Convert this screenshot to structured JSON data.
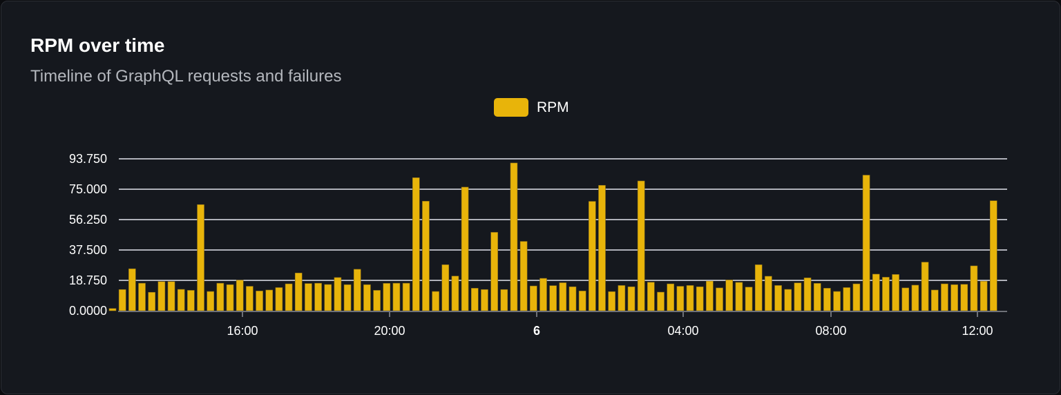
{
  "card": {
    "title": "RPM over time",
    "subtitle": "Timeline of GraphQL requests and failures"
  },
  "colors": {
    "bar": "#e8b40a",
    "bar_border": "#8a6e1a",
    "grid": "#e3e6ee",
    "axis": "#6e7178",
    "background": "#15181e"
  },
  "chart_data": {
    "type": "bar",
    "title": "RPM over time",
    "subtitle": "Timeline of GraphQL requests and failures",
    "legend": {
      "entries": [
        "RPM"
      ],
      "placement": "top"
    },
    "grid": true,
    "ylim": [
      0,
      93.75
    ],
    "y_ticks": [
      "0.0000",
      "18.750",
      "37.500",
      "56.250",
      "75.000",
      "93.750"
    ],
    "x_ticks": [
      "16:00",
      "20:00",
      "6",
      "04:00",
      "08:00",
      "12:00"
    ],
    "x_tick_bold": [
      false,
      false,
      true,
      false,
      false,
      false
    ],
    "series": [
      {
        "name": "RPM",
        "values": [
          1.4,
          13.1,
          25.9,
          17.0,
          11.4,
          18.0,
          18.0,
          13.2,
          12.6,
          65.5,
          11.9,
          17.0,
          16.1,
          18.9,
          15.1,
          12.2,
          12.8,
          14.3,
          16.6,
          23.3,
          16.8,
          17.0,
          16.2,
          20.5,
          16.1,
          25.6,
          16.1,
          12.6,
          16.9,
          17.0,
          17.0,
          82.1,
          67.6,
          11.9,
          28.4,
          21.4,
          76.3,
          13.9,
          13.1,
          48.4,
          13.1,
          91.2,
          42.8,
          15.3,
          20.0,
          15.5,
          17.3,
          14.8,
          12.2,
          67.5,
          77.4,
          11.8,
          15.6,
          14.8,
          80.1,
          17.6,
          11.5,
          16.6,
          15.1,
          15.6,
          14.8,
          18.3,
          14.1,
          19.0,
          17.5,
          14.6,
          28.4,
          21.3,
          15.6,
          13.2,
          17.2,
          20.3,
          16.9,
          13.9,
          11.9,
          14.3,
          16.6,
          83.7,
          22.6,
          20.7,
          22.4,
          14.1,
          15.8,
          30.0,
          12.8,
          16.6,
          16.1,
          16.3,
          27.7,
          18.2,
          67.9
        ]
      }
    ]
  }
}
